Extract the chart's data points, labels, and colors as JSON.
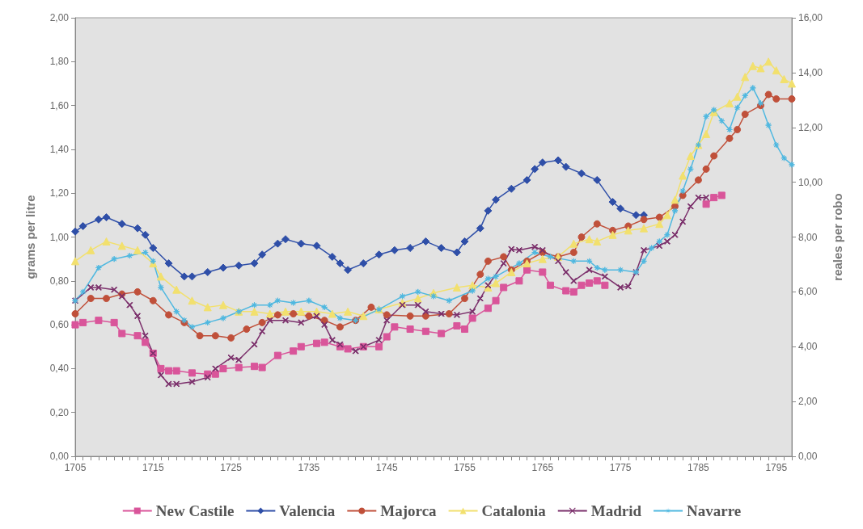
{
  "chart_data": {
    "type": "line",
    "ylabel": "grams per litre",
    "y2label": "reales per robo",
    "legend": "bottom",
    "grid": false,
    "xlim": [
      1705,
      1797
    ],
    "xticks": [
      1705,
      {
        "value": 1706,
        "label": null
      },
      {
        "value": 1707,
        "label": null
      },
      {
        "value": 1708,
        "label": null
      },
      {
        "value": 1709,
        "label": null
      },
      {
        "value": 1710,
        "label": null
      },
      {
        "value": 1711,
        "label": null
      },
      {
        "value": 1712,
        "label": null
      },
      {
        "value": 1713,
        "label": null
      },
      {
        "value": 1714,
        "label": null
      },
      1715,
      {
        "value": 1716,
        "label": null
      },
      {
        "value": 1717,
        "label": null
      },
      {
        "value": 1718,
        "label": null
      },
      {
        "value": 1719,
        "label": null
      },
      {
        "value": 1720,
        "label": null
      },
      {
        "value": 1721,
        "label": null
      },
      {
        "value": 1722,
        "label": null
      },
      {
        "value": 1723,
        "label": null
      },
      {
        "value": 1724,
        "label": null
      },
      1725,
      {
        "value": 1726,
        "label": null
      },
      {
        "value": 1727,
        "label": null
      },
      {
        "value": 1728,
        "label": null
      },
      {
        "value": 1729,
        "label": null
      },
      {
        "value": 1730,
        "label": null
      },
      {
        "value": 1731,
        "label": null
      },
      {
        "value": 1732,
        "label": null
      },
      {
        "value": 1733,
        "label": null
      },
      {
        "value": 1734,
        "label": null
      },
      1735,
      {
        "value": 1736,
        "label": null
      },
      {
        "value": 1737,
        "label": null
      },
      {
        "value": 1738,
        "label": null
      },
      {
        "value": 1739,
        "label": null
      },
      {
        "value": 1740,
        "label": null
      },
      {
        "value": 1741,
        "label": null
      },
      {
        "value": 1742,
        "label": null
      },
      {
        "value": 1743,
        "label": null
      },
      {
        "value": 1744,
        "label": null
      },
      1745,
      {
        "value": 1746,
        "label": null
      },
      {
        "value": 1747,
        "label": null
      },
      {
        "value": 1748,
        "label": null
      },
      {
        "value": 1749,
        "label": null
      },
      {
        "value": 1750,
        "label": null
      },
      {
        "value": 1751,
        "label": null
      },
      {
        "value": 1752,
        "label": null
      },
      {
        "value": 1753,
        "label": null
      },
      {
        "value": 1754,
        "label": null
      },
      1755,
      {
        "value": 1756,
        "label": null
      },
      {
        "value": 1757,
        "label": null
      },
      {
        "value": 1758,
        "label": null
      },
      {
        "value": 1759,
        "label": null
      },
      {
        "value": 1760,
        "label": null
      },
      {
        "value": 1761,
        "label": null
      },
      {
        "value": 1762,
        "label": null
      },
      {
        "value": 1763,
        "label": null
      },
      {
        "value": 1764,
        "label": null
      },
      1765,
      {
        "value": 1766,
        "label": null
      },
      {
        "value": 1767,
        "label": null
      },
      {
        "value": 1768,
        "label": null
      },
      {
        "value": 1769,
        "label": null
      },
      {
        "value": 1770,
        "label": null
      },
      {
        "value": 1771,
        "label": null
      },
      {
        "value": 1772,
        "label": null
      },
      {
        "value": 1773,
        "label": null
      },
      {
        "value": 1774,
        "label": null
      },
      1775,
      {
        "value": 1776,
        "label": null
      },
      {
        "value": 1777,
        "label": null
      },
      {
        "value": 1778,
        "label": null
      },
      {
        "value": 1779,
        "label": null
      },
      {
        "value": 1780,
        "label": null
      },
      {
        "value": 1781,
        "label": null
      },
      {
        "value": 1782,
        "label": null
      },
      {
        "value": 1783,
        "label": null
      },
      {
        "value": 1784,
        "label": null
      },
      1785,
      {
        "value": 1786,
        "label": null
      },
      {
        "value": 1787,
        "label": null
      },
      {
        "value": 1788,
        "label": null
      },
      {
        "value": 1789,
        "label": null
      },
      {
        "value": 1790,
        "label": null
      },
      {
        "value": 1791,
        "label": null
      },
      {
        "value": 1792,
        "label": null
      },
      {
        "value": 1793,
        "label": null
      },
      {
        "value": 1794,
        "label": null
      },
      1795,
      {
        "value": 1796,
        "label": null
      },
      {
        "value": 1797,
        "label": null
      }
    ],
    "ylim": [
      0,
      2
    ],
    "yticks": [
      {
        "value": 0,
        "label": "0,00"
      },
      {
        "value": 0.2,
        "label": "0,20"
      },
      {
        "value": 0.4,
        "label": "0,40"
      },
      {
        "value": 0.6,
        "label": "0,60"
      },
      {
        "value": 0.8,
        "label": "0,80"
      },
      {
        "value": 1,
        "label": "1,00"
      },
      {
        "value": 1.2,
        "label": "1,20"
      },
      {
        "value": 1.4,
        "label": "1,40"
      },
      {
        "value": 1.6,
        "label": "1,60"
      },
      {
        "value": 1.8,
        "label": "1,80"
      },
      {
        "value": 2,
        "label": "2,00"
      }
    ],
    "y2lim": [
      0,
      16
    ],
    "y2ticks": [
      {
        "value": 0,
        "label": "0,00"
      },
      {
        "value": 2,
        "label": "2,00"
      },
      {
        "value": 4,
        "label": "4,00"
      },
      {
        "value": 6,
        "label": "6,00"
      },
      {
        "value": 8,
        "label": "8,00"
      },
      {
        "value": 10,
        "label": "10,00"
      },
      {
        "value": 12,
        "label": "12,00"
      },
      {
        "value": 14,
        "label": "14,00"
      },
      {
        "value": 16,
        "label": "16,00"
      }
    ],
    "series": [
      {
        "name": "New Castile",
        "color": "#d9559a",
        "marker": "square",
        "x": [
          1705,
          1706,
          1708,
          1710,
          1711,
          1713,
          1714,
          1715,
          1716,
          1717,
          1718,
          1720,
          1722,
          1723,
          1724,
          1726,
          1728,
          1729,
          1731,
          1733,
          1734,
          1736,
          1737,
          1739,
          1740,
          1742,
          1744,
          1745,
          1746,
          1748,
          1750,
          1752,
          1754,
          1755,
          1756,
          1758,
          1759,
          1760,
          1762,
          1763,
          1765,
          1766,
          1768,
          1769,
          1770,
          1771,
          1772,
          1773,
          1779,
          1786,
          1787,
          1788
        ],
        "values": [
          0.6,
          0.61,
          0.62,
          0.61,
          0.56,
          0.55,
          0.52,
          0.47,
          0.4,
          0.39,
          0.39,
          0.38,
          0.375,
          0.375,
          0.4,
          0.405,
          0.41,
          0.405,
          0.46,
          0.48,
          0.5,
          0.515,
          0.52,
          0.5,
          0.49,
          0.5,
          0.5,
          0.545,
          0.59,
          0.58,
          0.57,
          0.56,
          0.595,
          0.58,
          0.63,
          0.675,
          0.71,
          0.77,
          0.8,
          0.85,
          0.84,
          0.78,
          0.755,
          0.75,
          0.78,
          0.79,
          0.8,
          0.78,
          null,
          1.15,
          1.18,
          1.19
        ]
      },
      {
        "name": "Valencia",
        "color": "#2f4fa8",
        "marker": "diamond",
        "x": [
          1705,
          1706,
          1708,
          1709,
          1711,
          1713,
          1714,
          1715,
          1717,
          1719,
          1720,
          1722,
          1724,
          1726,
          1728,
          1729,
          1731,
          1732,
          1734,
          1736,
          1738,
          1739,
          1740,
          1742,
          1744,
          1746,
          1748,
          1750,
          1752,
          1754,
          1755,
          1757,
          1758,
          1759,
          1761,
          1763,
          1764,
          1765,
          1767,
          1768,
          1770,
          1772,
          1774,
          1775,
          1777,
          1778
        ],
        "values": [
          1.025,
          1.05,
          1.08,
          1.09,
          1.06,
          1.04,
          1.01,
          0.95,
          0.88,
          0.82,
          0.82,
          0.84,
          0.86,
          0.87,
          0.88,
          0.92,
          0.97,
          0.99,
          0.97,
          0.96,
          0.91,
          0.88,
          0.85,
          0.88,
          0.92,
          0.94,
          0.95,
          0.98,
          0.95,
          0.93,
          0.98,
          1.04,
          1.12,
          1.17,
          1.22,
          1.26,
          1.31,
          1.34,
          1.35,
          1.32,
          1.29,
          1.26,
          1.16,
          1.13,
          1.1,
          1.1
        ]
      },
      {
        "name": "Majorca",
        "color": "#c0503a",
        "marker": "circle",
        "x": [
          1705,
          1707,
          1709,
          1711,
          1713,
          1715,
          1717,
          1719,
          1721,
          1723,
          1725,
          1727,
          1729,
          1731,
          1733,
          1735,
          1737,
          1739,
          1741,
          1743,
          1745,
          1748,
          1750,
          1753,
          1755,
          1757,
          1758,
          1760,
          1761,
          1763,
          1765,
          1767,
          1769,
          1770,
          1772,
          1774,
          1776,
          1778,
          1780,
          1782,
          1783,
          1785,
          1786,
          1787,
          1789,
          1790,
          1791,
          1793,
          1794,
          1795,
          1797
        ],
        "values": [
          0.65,
          0.72,
          0.72,
          0.74,
          0.75,
          0.71,
          0.645,
          0.61,
          0.55,
          0.55,
          0.54,
          0.58,
          0.61,
          0.645,
          0.65,
          0.64,
          0.62,
          0.59,
          0.62,
          0.68,
          0.645,
          0.64,
          0.64,
          0.65,
          0.72,
          0.83,
          0.89,
          0.91,
          0.85,
          0.89,
          0.93,
          0.91,
          0.93,
          1.0,
          1.06,
          1.03,
          1.05,
          1.08,
          1.09,
          1.14,
          1.19,
          1.26,
          1.31,
          1.37,
          1.45,
          1.49,
          1.56,
          1.6,
          1.65,
          1.63,
          1.63
        ]
      },
      {
        "name": "Catalonia",
        "color": "#f2e06e",
        "marker": "triangle",
        "x": [
          1705,
          1707,
          1709,
          1711,
          1713,
          1715,
          1716,
          1718,
          1720,
          1722,
          1724,
          1726,
          1728,
          1730,
          1732,
          1734,
          1736,
          1738,
          1740,
          1742,
          1744,
          1747,
          1749,
          1751,
          1754,
          1756,
          1758,
          1759,
          1761,
          1763,
          1765,
          1767,
          1769,
          1771,
          1772,
          1774,
          1776,
          1778,
          1780,
          1781,
          1782,
          1783,
          1784,
          1785,
          1786,
          1787,
          1789,
          1790,
          1791,
          1792,
          1793,
          1794,
          1795,
          1796,
          1797
        ],
        "values": [
          0.89,
          0.94,
          0.98,
          0.96,
          0.94,
          0.88,
          0.82,
          0.76,
          0.71,
          0.68,
          0.69,
          0.66,
          0.66,
          0.65,
          0.66,
          0.66,
          0.66,
          0.65,
          0.66,
          0.64,
          0.67,
          0.7,
          0.72,
          0.745,
          0.77,
          0.78,
          0.77,
          0.79,
          0.84,
          0.88,
          0.9,
          0.91,
          0.97,
          0.99,
          0.98,
          1.01,
          1.03,
          1.04,
          1.06,
          1.1,
          1.17,
          1.28,
          1.37,
          1.42,
          1.47,
          1.57,
          1.61,
          1.64,
          1.73,
          1.78,
          1.77,
          1.8,
          1.76,
          1.72,
          1.7
        ]
      },
      {
        "name": "Madrid",
        "color": "#7b2f6b",
        "marker": "cross",
        "x": [
          1705,
          1707,
          1708,
          1710,
          1711,
          1712,
          1713,
          1714,
          1715,
          1716,
          1717,
          1718,
          1720,
          1722,
          1723,
          1725,
          1726,
          1728,
          1729,
          1730,
          1732,
          1734,
          1736,
          1737,
          1738,
          1739,
          1741,
          1742,
          1744,
          1745,
          1747,
          1749,
          1750,
          1752,
          1754,
          1756,
          1757,
          1758,
          1760,
          1761,
          1762,
          1764,
          1765,
          1767,
          1768,
          1769,
          1771,
          1773,
          1775,
          1776,
          1777,
          1778,
          1780,
          1781,
          1782,
          1783,
          1784,
          1785,
          1786
        ],
        "values": [
          0.71,
          0.77,
          0.77,
          0.76,
          0.73,
          0.69,
          0.64,
          0.55,
          0.47,
          0.37,
          0.33,
          0.33,
          0.34,
          0.36,
          0.4,
          0.45,
          0.44,
          0.51,
          0.57,
          0.62,
          0.62,
          0.61,
          0.64,
          0.6,
          0.53,
          0.51,
          0.48,
          0.5,
          0.53,
          0.62,
          0.69,
          0.69,
          0.66,
          0.65,
          0.645,
          0.66,
          0.72,
          0.78,
          0.88,
          0.945,
          0.94,
          0.955,
          0.94,
          0.89,
          0.84,
          0.8,
          0.85,
          0.82,
          0.77,
          0.775,
          0.84,
          0.94,
          0.96,
          0.98,
          1.01,
          1.07,
          1.14,
          1.18,
          1.18
        ]
      },
      {
        "name": "Navarre",
        "color": "#4fb8e0",
        "marker": "star",
        "x": [
          1705,
          1706,
          1708,
          1710,
          1712,
          1714,
          1715,
          1716,
          1718,
          1719,
          1720,
          1722,
          1724,
          1726,
          1728,
          1730,
          1731,
          1733,
          1735,
          1737,
          1739,
          1741,
          1744,
          1747,
          1749,
          1751,
          1753,
          1756,
          1758,
          1759,
          1762,
          1764,
          1766,
          1769,
          1771,
          1772,
          1773,
          1775,
          1777,
          1778,
          1779,
          1780,
          1781,
          1782,
          1783,
          1784,
          1785,
          1786,
          1787,
          1788,
          1789,
          1790,
          1791,
          1792,
          1793,
          1794,
          1795,
          1796,
          1797
        ],
        "values": [
          0.71,
          0.75,
          0.86,
          0.9,
          0.915,
          0.93,
          0.89,
          0.77,
          0.66,
          0.62,
          0.59,
          0.61,
          0.63,
          0.66,
          0.69,
          0.69,
          0.71,
          0.7,
          0.71,
          0.68,
          0.63,
          0.62,
          0.67,
          0.73,
          0.75,
          0.73,
          0.71,
          0.755,
          0.81,
          0.82,
          0.88,
          0.93,
          0.91,
          0.89,
          0.89,
          0.86,
          0.85,
          0.85,
          0.84,
          0.89,
          0.95,
          0.98,
          1.01,
          1.12,
          1.21,
          1.31,
          1.42,
          1.55,
          1.58,
          1.53,
          1.49,
          1.59,
          1.645,
          1.68,
          1.61,
          1.51,
          1.42,
          1.36,
          1.33
        ]
      }
    ]
  }
}
